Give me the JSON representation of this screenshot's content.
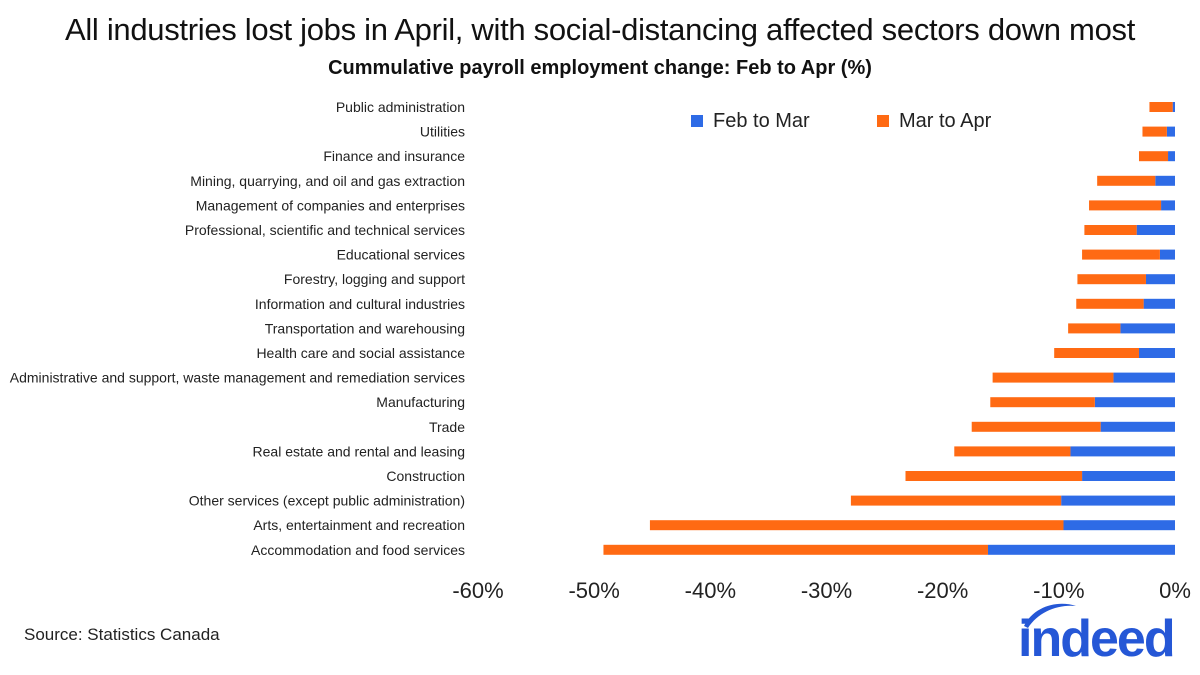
{
  "header": {
    "title": "All industries lost jobs in April, with social-distancing affected sectors down most",
    "subtitle": "Cummulative payroll employment change: Feb to Apr (%)"
  },
  "footer": {
    "source": "Source: Statistics Canada",
    "logo_text": "indeed"
  },
  "colors": {
    "feb_to_mar": "#2e6be6",
    "mar_to_apr": "#ff6a13",
    "logo": "#2557d6"
  },
  "chart_data": {
    "type": "bar",
    "orientation": "horizontal",
    "stacked": true,
    "title": "Cummulative payroll employment change: Feb to Apr (%)",
    "xlabel": "",
    "ylabel": "",
    "xlim": [
      -60,
      0
    ],
    "x_ticks": [
      -60,
      -50,
      -40,
      -30,
      -20,
      -10,
      0
    ],
    "x_tick_labels": [
      "-60%",
      "-50%",
      "-40%",
      "-30%",
      "-20%",
      "-10%",
      "0%"
    ],
    "grid": false,
    "legend_position": "top-right",
    "categories": [
      "Public administration",
      "Utilities",
      "Finance and insurance",
      "Mining, quarrying, and oil and gas extraction",
      "Management of companies and enterprises",
      "Professional, scientific and technical services",
      "Educational services",
      "Forestry, logging and support",
      "Information and cultural industries",
      "Transportation and warehousing",
      "Health care and social assistance",
      "Administrative and support, waste management and remediation services",
      "Manufacturing",
      "Trade",
      "Real estate and rental and leasing",
      "Construction",
      "Other services (except public administration)",
      "Arts, entertainment and recreation",
      "Accommodation and food services"
    ],
    "series": [
      {
        "name": "Feb to Mar",
        "values": [
          -0.2,
          -0.7,
          -0.6,
          -1.7,
          -1.2,
          -3.3,
          -1.3,
          -2.5,
          -2.7,
          -4.7,
          -3.1,
          -5.3,
          -6.9,
          -6.4,
          -9.0,
          -8.0,
          -9.8,
          -9.6,
          -16.1
        ]
      },
      {
        "name": "Mar to Apr",
        "values": [
          -2.0,
          -2.1,
          -2.5,
          -5.0,
          -6.2,
          -4.5,
          -6.7,
          -5.9,
          -5.8,
          -4.5,
          -7.3,
          -10.4,
          -9.0,
          -11.1,
          -10.0,
          -15.2,
          -18.1,
          -35.6,
          -33.1
        ]
      }
    ]
  }
}
